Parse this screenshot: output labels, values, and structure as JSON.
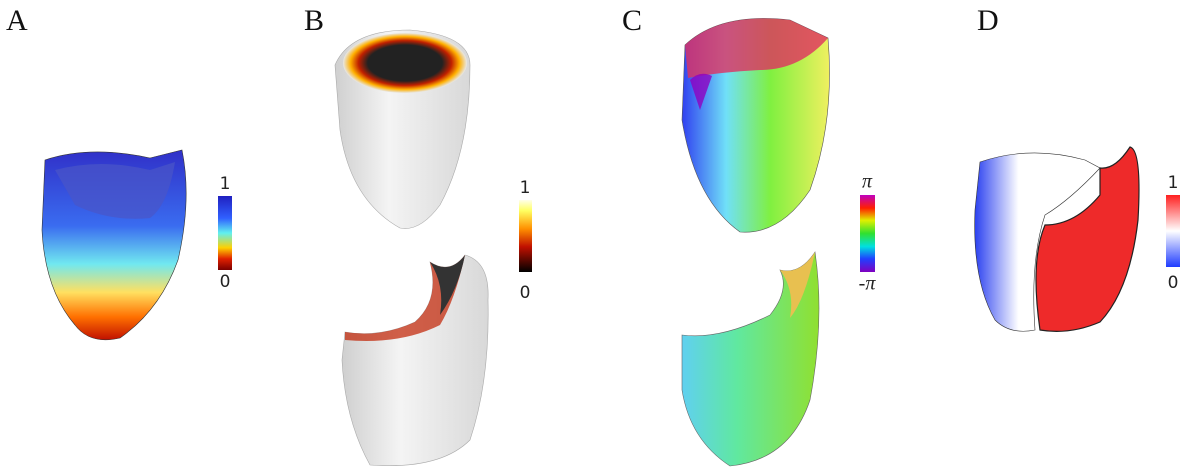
{
  "panels": [
    {
      "label": "A",
      "colorbar": {
        "top": "1",
        "bottom": "0"
      }
    },
    {
      "label": "B",
      "colorbar": {
        "top": "1",
        "bottom": "0"
      }
    },
    {
      "label": "C",
      "colorbar": {
        "top": "π",
        "bottom": "-π"
      }
    },
    {
      "label": "D",
      "colorbar": {
        "top": "1",
        "bottom": "0"
      }
    }
  ]
}
